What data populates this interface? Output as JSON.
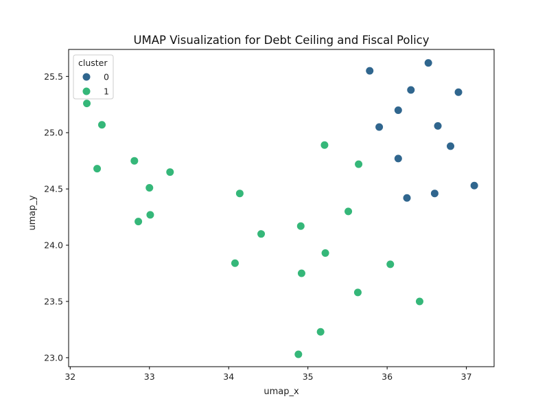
{
  "chart_data": {
    "type": "scatter",
    "title": "UMAP Visualization for Debt Ceiling and Fiscal Policy",
    "xlabel": "umap_x",
    "ylabel": "umap_y",
    "xlim": [
      31.98,
      37.35
    ],
    "ylim": [
      22.92,
      25.74
    ],
    "xticks": [
      32,
      33,
      34,
      35,
      36,
      37
    ],
    "yticks": [
      23.0,
      23.5,
      24.0,
      24.5,
      25.0,
      25.5
    ],
    "ytick_labels": [
      "23.0",
      "23.5",
      "24.0",
      "24.5",
      "25.0",
      "25.5"
    ],
    "grid": false,
    "legend": {
      "title": "cluster",
      "placement": "top-left"
    },
    "series": [
      {
        "name": "0",
        "color": "#30668e",
        "points": [
          [
            35.78,
            25.55
          ],
          [
            36.52,
            25.62
          ],
          [
            36.3,
            25.38
          ],
          [
            36.9,
            25.36
          ],
          [
            36.14,
            25.2
          ],
          [
            35.9,
            25.05
          ],
          [
            36.64,
            25.06
          ],
          [
            36.8,
            24.88
          ],
          [
            36.14,
            24.77
          ],
          [
            37.1,
            24.53
          ],
          [
            36.25,
            24.42
          ],
          [
            36.6,
            24.46
          ]
        ]
      },
      {
        "name": "1",
        "color": "#35b779",
        "points": [
          [
            32.21,
            25.26
          ],
          [
            32.4,
            25.07
          ],
          [
            32.34,
            24.68
          ],
          [
            32.81,
            24.75
          ],
          [
            33.0,
            24.51
          ],
          [
            33.26,
            24.65
          ],
          [
            32.86,
            24.21
          ],
          [
            33.01,
            24.27
          ],
          [
            34.14,
            24.46
          ],
          [
            35.21,
            24.89
          ],
          [
            35.64,
            24.72
          ],
          [
            35.51,
            24.3
          ],
          [
            34.91,
            24.17
          ],
          [
            34.41,
            24.1
          ],
          [
            34.08,
            23.84
          ],
          [
            35.22,
            23.93
          ],
          [
            36.04,
            23.83
          ],
          [
            34.92,
            23.75
          ],
          [
            35.63,
            23.58
          ],
          [
            36.41,
            23.5
          ],
          [
            35.16,
            23.23
          ],
          [
            34.88,
            23.03
          ]
        ]
      }
    ]
  }
}
